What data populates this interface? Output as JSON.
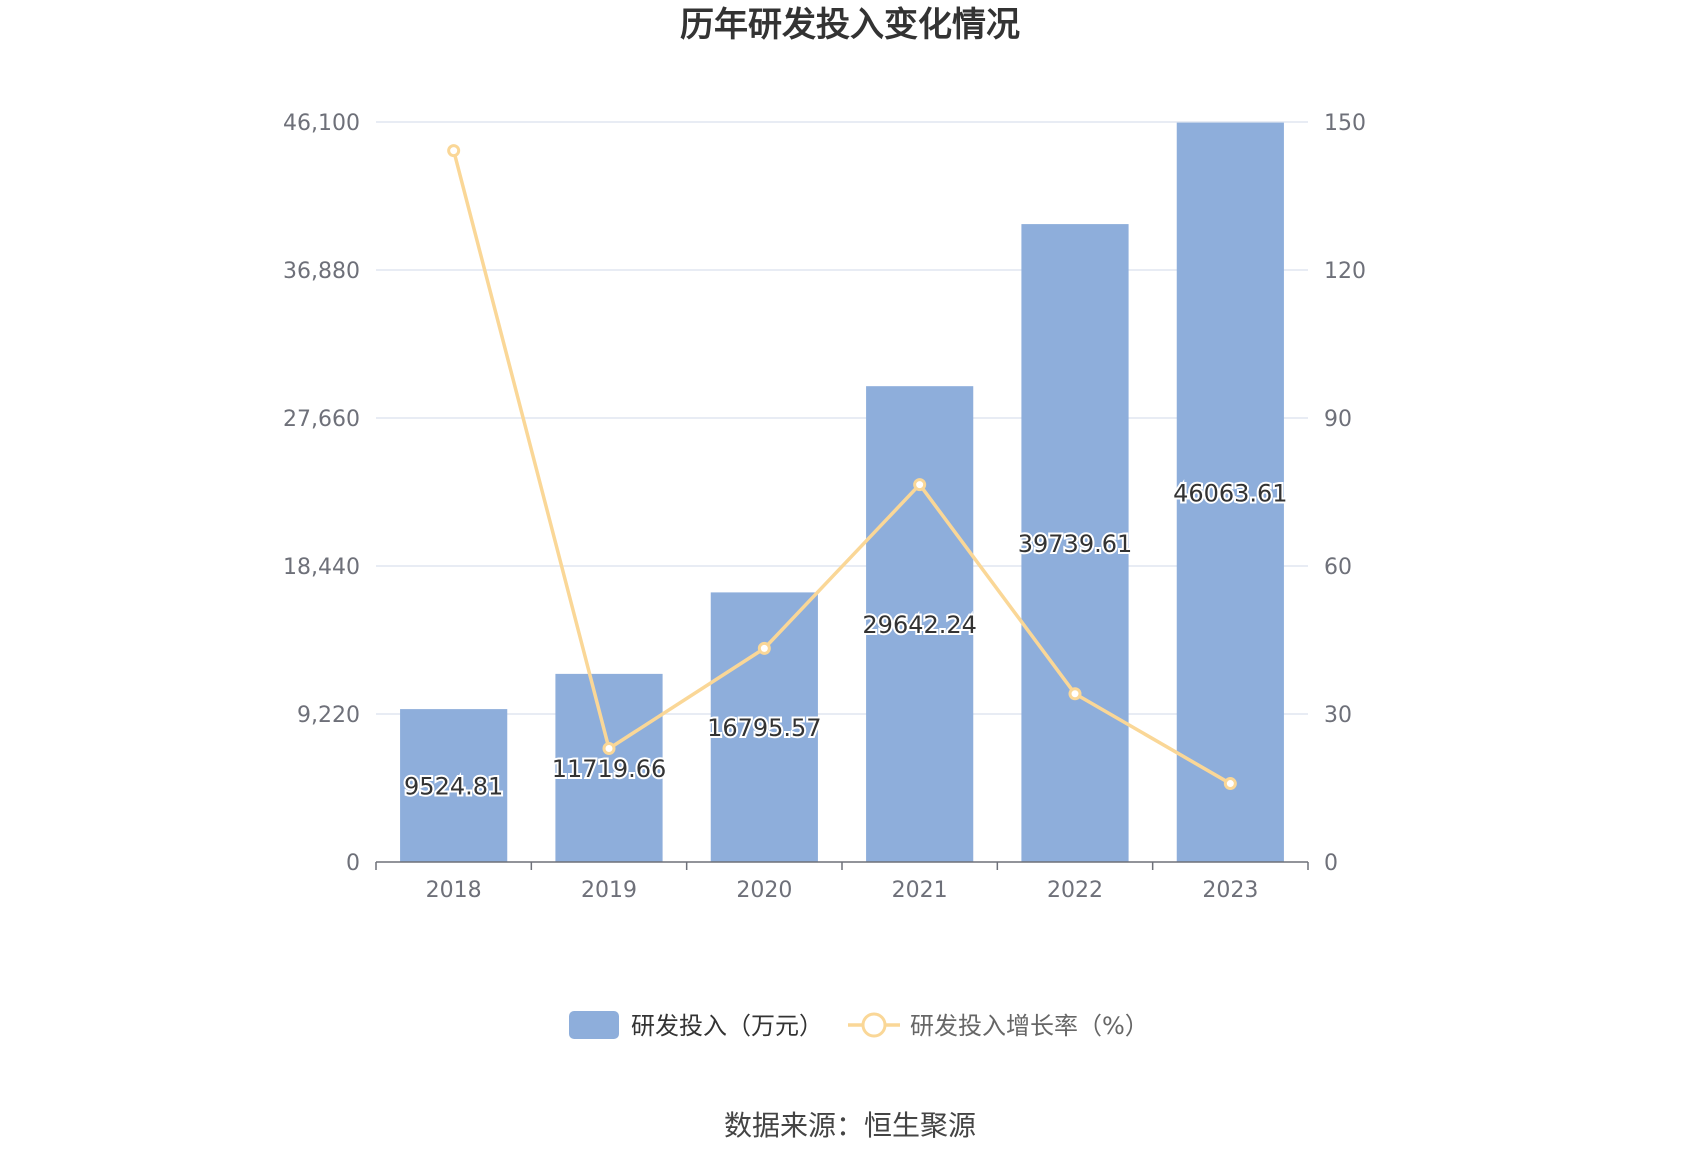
{
  "chart_data": {
    "type": "bar",
    "title": "历年研发投入变化情况",
    "categories": [
      "2018",
      "2019",
      "2020",
      "2021",
      "2022",
      "2023"
    ],
    "series": [
      {
        "name": "研发投入（万元）",
        "type": "bar",
        "axis": "left",
        "values": [
          9524.81,
          11719.66,
          16795.57,
          29642.24,
          39739.61,
          46063.61
        ],
        "labels": [
          "9524.81",
          "11719.66",
          "16795.57",
          "29642.24",
          "39739.61",
          "46063.61"
        ],
        "color": "#8eaedb"
      },
      {
        "name": "研发投入增长率（%）",
        "type": "line",
        "axis": "right",
        "values": [
          144.2,
          23.0,
          43.3,
          76.5,
          34.1,
          15.9
        ],
        "color": "#fad797"
      }
    ],
    "y_left": {
      "ylim": [
        0,
        46100
      ],
      "ticks": [
        0,
        9220,
        18440,
        27660,
        36880,
        46100
      ],
      "tick_labels": [
        "0",
        "9,220",
        "18,440",
        "27,660",
        "36,880",
        "46,100"
      ]
    },
    "y_right": {
      "ylim": [
        0,
        150
      ],
      "ticks": [
        0,
        30,
        60,
        90,
        120,
        150
      ],
      "tick_labels": [
        "0",
        "30",
        "60",
        "90",
        "120",
        "150"
      ]
    },
    "grid": true,
    "legend_position": "bottom-center"
  },
  "footer": {
    "source": "数据来源：恒生聚源"
  }
}
